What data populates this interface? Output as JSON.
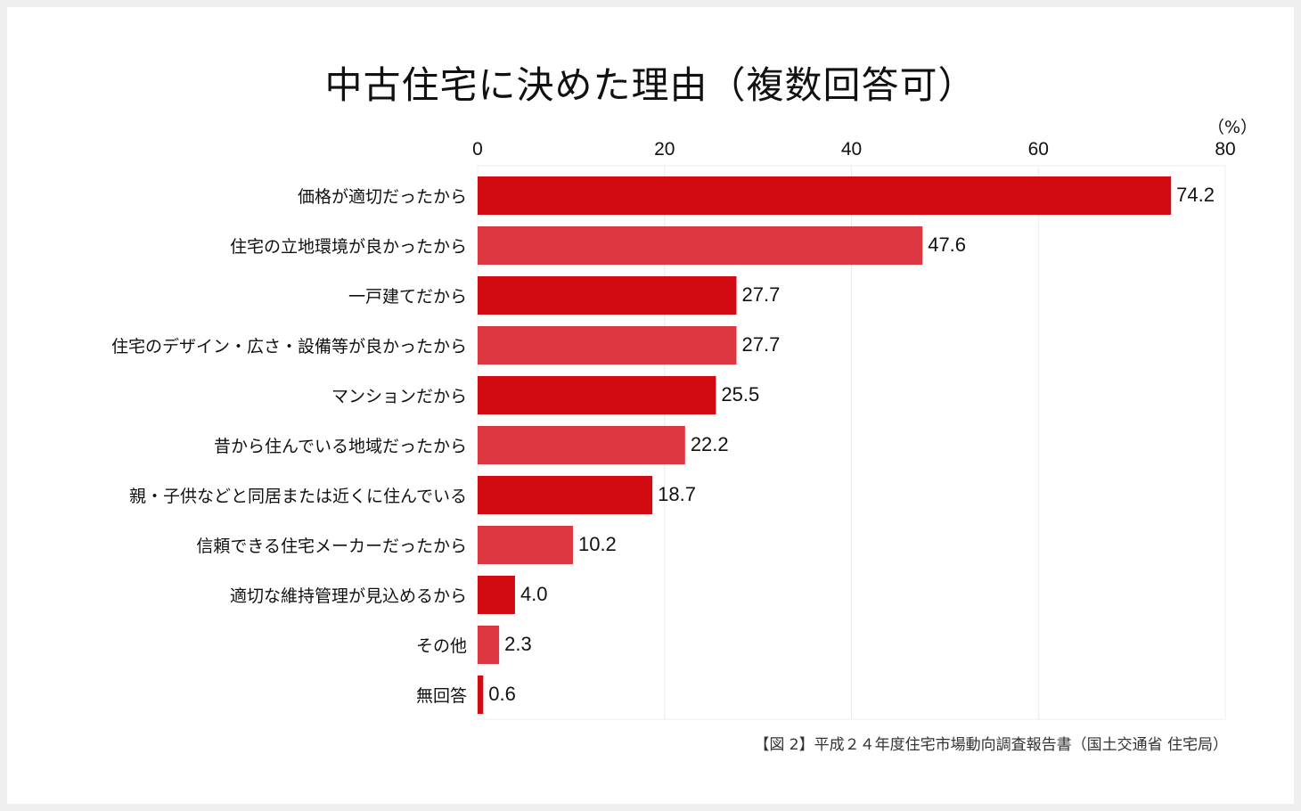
{
  "chart_data": {
    "type": "bar",
    "orientation": "horizontal",
    "title": "中古住宅に決めた理由（複数回答可）",
    "unit_label": "（%）",
    "categories": [
      "価格が適切だったから",
      "住宅の立地環境が良かったから",
      "一戸建てだから",
      "住宅のデザイン・広さ・設備等が良かったから",
      "マンションだから",
      "昔から住んでいる地域だったから",
      "親・子供などと同居または近くに住んでいる",
      "信頼できる住宅メーカーだったから",
      "適切な維持管理が見込めるから",
      "その他",
      "無回答"
    ],
    "values": [
      74.2,
      47.6,
      27.7,
      27.7,
      25.5,
      22.2,
      18.7,
      10.2,
      4.0,
      2.3,
      0.6
    ],
    "value_labels": [
      "74.2",
      "47.6",
      "27.7",
      "27.7",
      "25.5",
      "22.2",
      "18.7",
      "10.2",
      "4.0",
      "2.3",
      "0.6"
    ],
    "xlim": [
      0,
      80
    ],
    "ticks": [
      "0",
      "20",
      "40",
      "60",
      "80"
    ],
    "tick_values": [
      0,
      20,
      40,
      60,
      80
    ],
    "axis_position": "top",
    "grid": true,
    "colors": [
      "#d20a11",
      "#dc3740"
    ],
    "source": "【図 2】平成２４年度住宅市場動向調査報告書（国土交通省 住宅局）"
  }
}
